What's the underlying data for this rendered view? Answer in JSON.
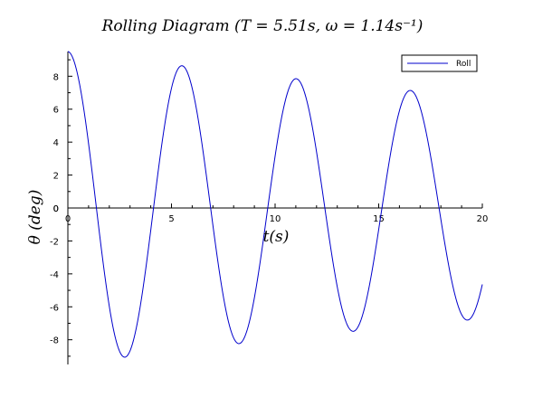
{
  "chart_data": {
    "type": "line",
    "title": "Rolling Diagram (T = 5.51s,  ω = 1.14s⁻¹)",
    "xlabel": "t(s)",
    "ylabel": "θ (deg)",
    "xlim": [
      0,
      20
    ],
    "ylim": [
      -9.5,
      9.5
    ],
    "xticks": [
      0,
      5,
      10,
      15,
      20
    ],
    "xtick_labels": [
      "0",
      "5",
      "10",
      "15",
      "20"
    ],
    "yticks": [
      -8,
      -6,
      -4,
      -2,
      0,
      2,
      4,
      6,
      8
    ],
    "ytick_labels": [
      "-8",
      "-6",
      "-4",
      "-2",
      "0",
      "2",
      "4",
      "6",
      "8"
    ],
    "grid": false,
    "legend": {
      "position": "top-right",
      "entries": [
        "Roll"
      ]
    },
    "series": [
      {
        "name": "Roll",
        "color": "#0000cc",
        "model": "damped-cosine",
        "amplitude": 9.5,
        "decay": 0.0173,
        "omega": 1.14,
        "x": [
          0,
          2.75,
          5.51,
          8.26,
          11.02,
          13.77,
          16.53,
          19.28,
          20
        ],
        "values": [
          9.5,
          -9.1,
          8.6,
          -8.2,
          7.9,
          -7.4,
          7.0,
          -6.6,
          -5.1
        ]
      }
    ]
  },
  "colors": {
    "axis": "#000000",
    "line": "#0000cc",
    "background": "#ffffff"
  }
}
